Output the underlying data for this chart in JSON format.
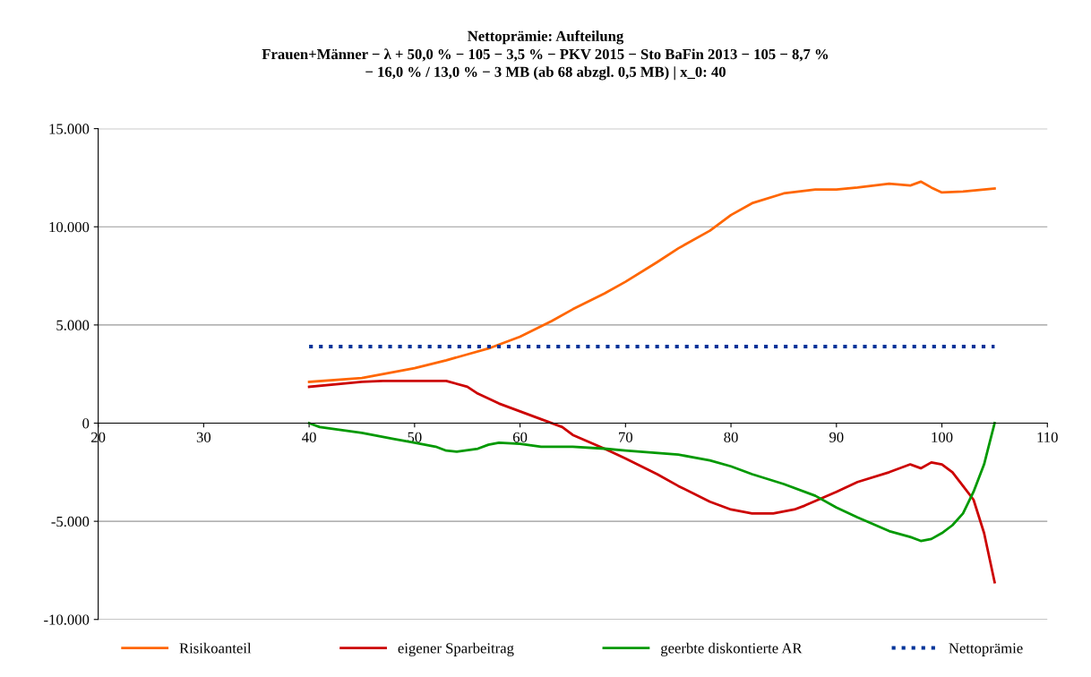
{
  "chart_data": {
    "type": "line",
    "title": "Nettoprämie: Aufteilung",
    "subtitle": "Frauen+Männer − λ + 50,0 % − 105 − 3,5 % − PKV 2015 − Sto BaFin 2013 − 105 − 8,7 %\n− 16,0 % / 13,0 % − 3 MB (ab 68 abzgl. 0,5 MB) | x_0: 40",
    "xlim": [
      20,
      110
    ],
    "xticks": [
      20,
      30,
      40,
      50,
      60,
      70,
      80,
      90,
      100,
      110
    ],
    "ylim": [
      -10000,
      15000
    ],
    "yticks": [
      {
        "value": -10000,
        "label": "-10.000"
      },
      {
        "value": -5000,
        "label": "-5.000"
      },
      {
        "value": 0,
        "label": "0"
      },
      {
        "value": 5000,
        "label": "5.000"
      },
      {
        "value": 10000,
        "label": "10.000"
      },
      {
        "value": 15000,
        "label": "15.000"
      }
    ],
    "grid": "y",
    "legend": "bottom",
    "marker": "none",
    "series": [
      {
        "name": "Risikoanteil",
        "color": "#ff6600",
        "x": [
          40,
          45,
          50,
          53,
          55,
          57,
          60,
          63,
          65,
          68,
          70,
          73,
          75,
          78,
          80,
          82,
          85,
          88,
          90,
          92,
          95,
          97,
          98,
          99,
          100,
          102,
          104,
          105
        ],
        "values": [
          2100,
          2300,
          2800,
          3200,
          3500,
          3800,
          4400,
          5200,
          5800,
          6600,
          7200,
          8200,
          8900,
          9800,
          10600,
          11200,
          11700,
          11900,
          11900,
          12000,
          12200,
          12100,
          12300,
          12000,
          11750,
          11800,
          11900,
          11950
        ]
      },
      {
        "name": "eigener Sparbeitrag",
        "color": "#cc0000",
        "x": [
          40,
          43,
          45,
          47,
          50,
          53,
          55,
          56,
          58,
          60,
          62,
          64,
          65,
          68,
          70,
          73,
          75,
          78,
          80,
          82,
          84,
          86,
          87,
          90,
          92,
          95,
          97,
          98,
          99,
          100,
          101,
          102,
          103,
          104,
          105
        ],
        "values": [
          1850,
          2000,
          2100,
          2150,
          2150,
          2150,
          1850,
          1500,
          1000,
          600,
          200,
          -200,
          -600,
          -1300,
          -1800,
          -2600,
          -3200,
          -4000,
          -4400,
          -4600,
          -4600,
          -4400,
          -4200,
          -3500,
          -3000,
          -2500,
          -2100,
          -2300,
          -2000,
          -2100,
          -2500,
          -3200,
          -3900,
          -5600,
          -8100
        ]
      },
      {
        "name": "geerbte diskontierte AR",
        "color": "#009900",
        "x": [
          40,
          41,
          45,
          48,
          50,
          52,
          53,
          54,
          56,
          57,
          58,
          60,
          62,
          65,
          68,
          70,
          75,
          78,
          80,
          82,
          85,
          88,
          90,
          92,
          95,
          97,
          98,
          99,
          100,
          101,
          102,
          103,
          104,
          105
        ],
        "values": [
          0,
          -200,
          -500,
          -800,
          -1000,
          -1200,
          -1400,
          -1450,
          -1300,
          -1100,
          -1000,
          -1050,
          -1200,
          -1200,
          -1300,
          -1400,
          -1600,
          -1900,
          -2200,
          -2600,
          -3100,
          -3700,
          -4300,
          -4800,
          -5500,
          -5800,
          -6000,
          -5900,
          -5600,
          -5200,
          -4600,
          -3500,
          -2100,
          0
        ]
      },
      {
        "name": "Nettoprämie",
        "color": "#003399",
        "line_style": "dotted",
        "x": [
          40,
          105
        ],
        "values": [
          3900,
          3900
        ]
      }
    ]
  }
}
